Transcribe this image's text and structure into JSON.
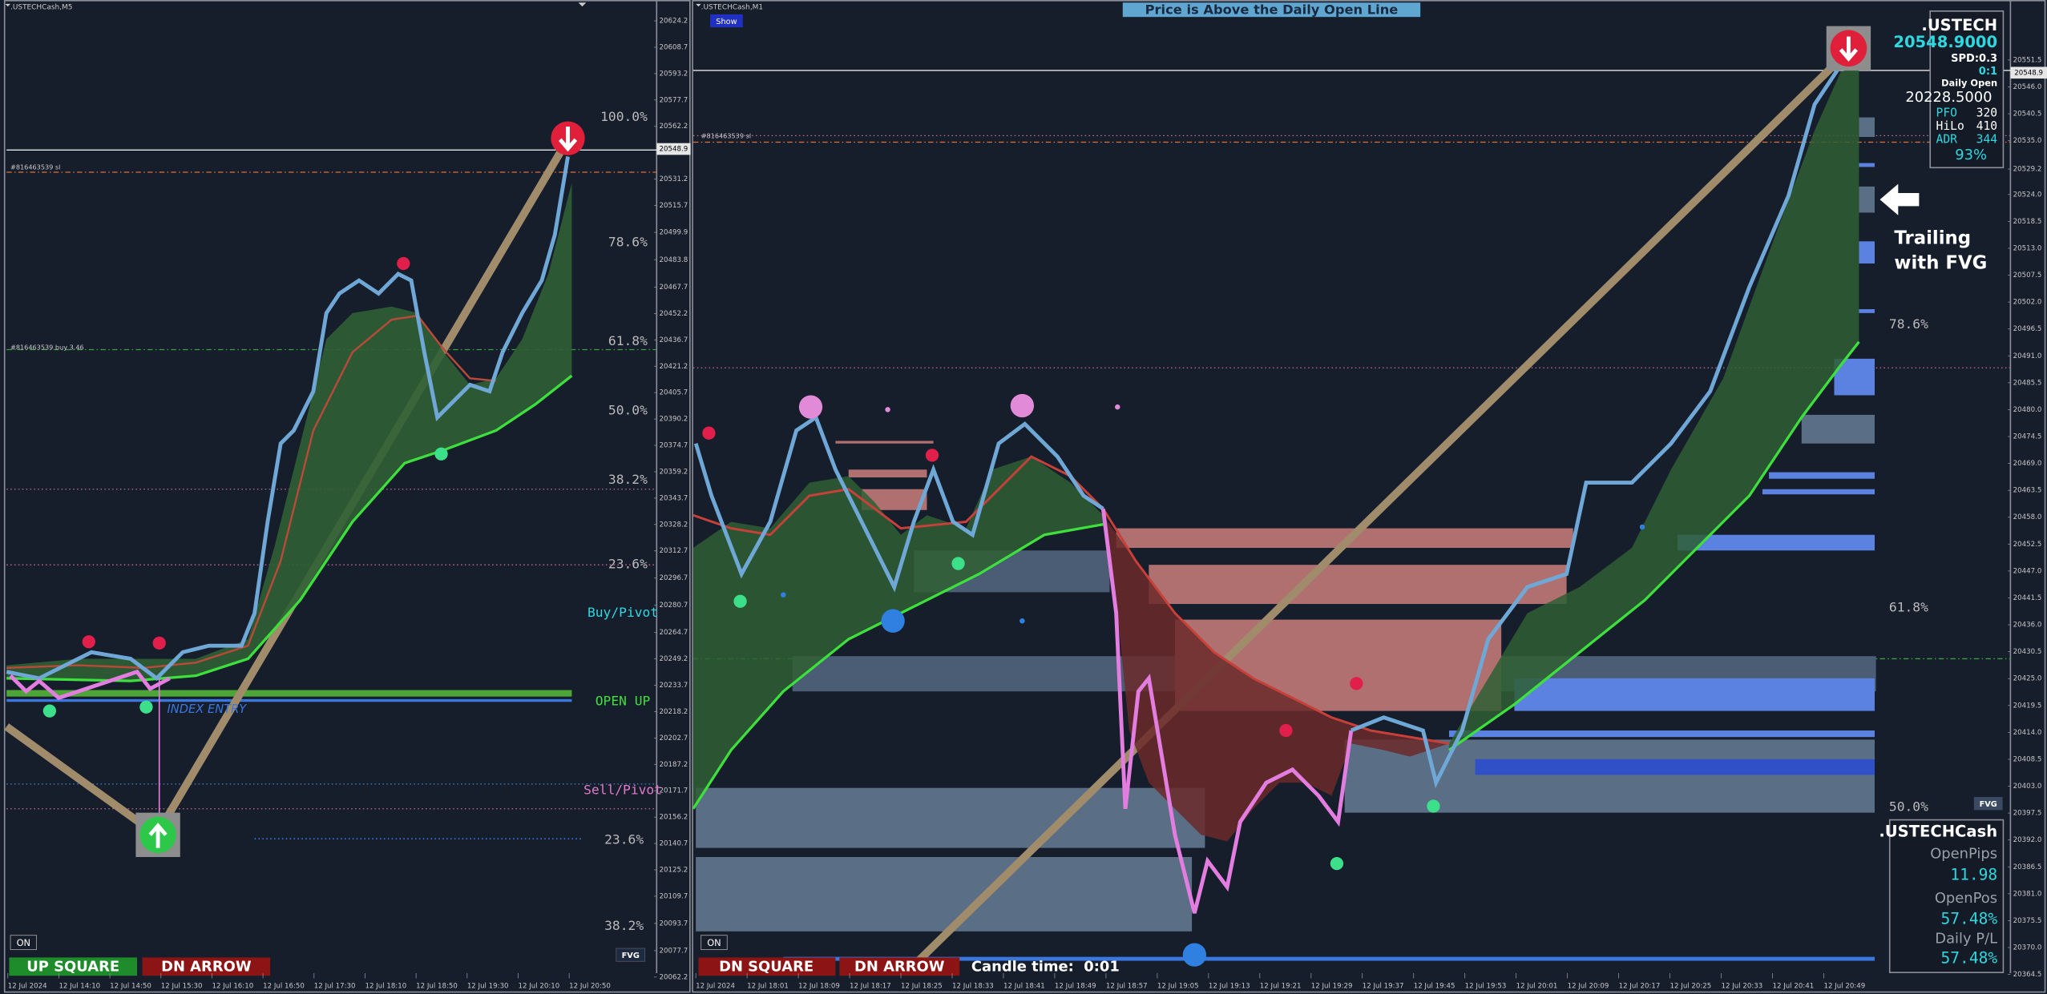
{
  "left_chart": {
    "title": ".USTECHCash,M5",
    "current_price": "20548.9",
    "price_axis": [
      "20624.2",
      "20608.7",
      "20593.2",
      "20577.7",
      "20562.2",
      "20531.2",
      "20515.7",
      "20499.9",
      "20483.8",
      "20467.7",
      "20452.2",
      "20436.7",
      "20421.2",
      "20405.7",
      "20390.2",
      "20374.7",
      "20359.2",
      "20343.7",
      "20328.2",
      "20312.7",
      "20296.7",
      "20280.7",
      "20264.7",
      "20249.2",
      "20233.7",
      "20218.2",
      "20202.7",
      "20187.2",
      "20171.7",
      "20156.2",
      "20140.7",
      "20125.2",
      "20109.7",
      "20093.7",
      "20077.7",
      "20062.2"
    ],
    "time_axis": [
      "12 Jul 2024",
      "12 Jul 14:10",
      "12 Jul 14:50",
      "12 Jul 15:30",
      "12 Jul 16:10",
      "12 Jul 16:50",
      "12 Jul 17:30",
      "12 Jul 18:10",
      "12 Jul 18:50",
      "12 Jul 19:30",
      "12 Jul 20:10",
      "12 Jul 20:50"
    ],
    "fib_levels": [
      "100.0%",
      "78.6%",
      "61.8%",
      "50.0%",
      "38.2%",
      "23.6%"
    ],
    "lower_fib_levels": [
      "23.6%",
      "38.2%"
    ],
    "pivot_labels": {
      "buy": "Buy/Pivot",
      "open": "OPEN UP",
      "sell": "Sell/Pivot"
    },
    "index_entry": "INDEX ENTRY",
    "order_labels": [
      "#816463539 sl",
      "#816463539 buy 3.46"
    ],
    "buttons": {
      "on": "ON",
      "square": "UP SQUARE",
      "arrow": "DN ARROW",
      "fvg": "FVG"
    }
  },
  "right_chart": {
    "title": ".USTECHCash,M1",
    "show_button": "Show",
    "banner": "Price is Above the Daily Open Line",
    "current_price": "20548.9",
    "price_axis": [
      "20551.5",
      "20546.0",
      "20540.5",
      "20535.0",
      "20529.2",
      "20524.0",
      "20518.5",
      "20513.0",
      "20507.5",
      "20502.0",
      "20496.5",
      "20491.0",
      "20485.5",
      "20480.0",
      "20474.5",
      "20469.0",
      "20463.5",
      "20458.0",
      "20452.5",
      "20447.0",
      "20441.5",
      "20436.0",
      "20430.5",
      "20425.0",
      "20419.5",
      "20414.0",
      "20408.5",
      "20403.0",
      "20397.5",
      "20392.0",
      "20386.5",
      "20381.0",
      "20375.5",
      "20370.0",
      "20364.5"
    ],
    "time_axis": [
      "12 Jul 2024",
      "12 Jul 18:01",
      "12 Jul 18:09",
      "12 Jul 18:17",
      "12 Jul 18:25",
      "12 Jul 18:33",
      "12 Jul 18:41",
      "12 Jul 18:49",
      "12 Jul 18:57",
      "12 Jul 19:05",
      "12 Jul 19:13",
      "12 Jul 19:21",
      "12 Jul 19:29",
      "12 Jul 19:37",
      "12 Jul 19:45",
      "12 Jul 19:53",
      "12 Jul 20:01",
      "12 Jul 20:09",
      "12 Jul 20:17",
      "12 Jul 20:25",
      "12 Jul 20:33",
      "12 Jul 20:41",
      "12 Jul 20:49"
    ],
    "fib_levels": [
      "78.6%",
      "61.8%",
      "50.0%"
    ],
    "order_label": "#816463539 sl",
    "annotation": [
      "Trailing",
      "with FVG"
    ],
    "buttons": {
      "on": "ON",
      "square": "DN SQUARE",
      "arrow": "DN ARROW",
      "fvg": "FVG",
      "candle_time": "Candle time:  0:01"
    }
  },
  "info_panel": {
    "symbol": ".USTECH",
    "price": "20548.9000",
    "spread": "SPD:0.3",
    "ratio": "0:1",
    "daily_open_label": "Daily Open",
    "daily_open": "20228.5000",
    "rows": [
      [
        "PFO",
        "320"
      ],
      [
        "HiLo",
        "410"
      ],
      [
        "ADR",
        "344"
      ]
    ],
    "percent": "93%"
  },
  "account_panel": {
    "symbol": ".USTECHCash",
    "open_pips_label": "OpenPips",
    "open_pips": "11.98",
    "open_pos_label": "OpenPos",
    "open_pos": "57.48%",
    "daily_pl_label": "Daily P/L",
    "daily_pl": "57.48%"
  }
}
